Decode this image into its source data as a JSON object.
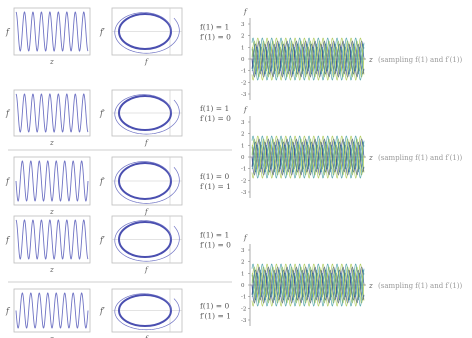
{
  "labels": {
    "f": "f",
    "fprime": "f′",
    "z": "z",
    "sampling_note": "(sampling f(1) and f′(1))"
  },
  "rows": [
    {
      "cond_f": "f(1) = 1",
      "cond_fp": "f′(1) = 0"
    },
    {
      "cond_f": "f(1) = 1",
      "cond_fp": "f′(1) = 0"
    },
    {
      "cond_f": "f(1) = 0",
      "cond_fp": "f′(1) = 1"
    },
    {
      "cond_f": "f(1) = 1",
      "cond_fp": "f′(1) = 0"
    },
    {
      "cond_f": "f(1) = 0",
      "cond_fp": "f′(1) = 1"
    }
  ],
  "ensembles": [
    {
      "y_ticks": [
        "3",
        "2",
        "1",
        "0",
        "-1",
        "-2",
        "-3"
      ]
    },
    {
      "y_ticks": [
        "3",
        "2",
        "1",
        "0",
        "-1",
        "-2",
        "-3"
      ]
    },
    {
      "y_ticks": [
        "3",
        "2",
        "1",
        "0",
        "-1",
        "-2",
        "-3"
      ]
    }
  ],
  "colors": {
    "curve": "#6f73c4",
    "orbit": "#4a4fb0",
    "axis": "#8a8a8a",
    "frame": "#bdbdbd",
    "text": "#555555",
    "note": "#999999",
    "ens_teal": "#3f9aa0",
    "ens_green": "#a7c64a",
    "ens_navy": "#2f3f86"
  }
}
